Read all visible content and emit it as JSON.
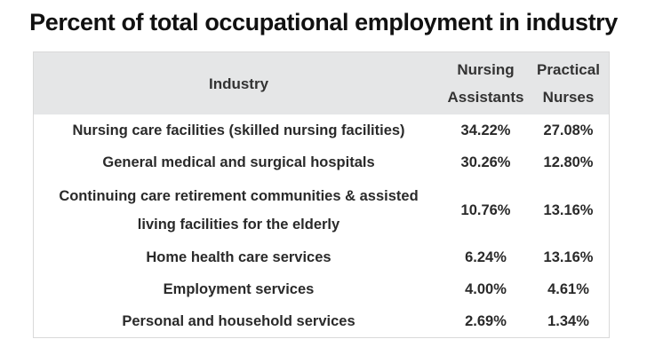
{
  "title": "Percent of total occupational employment in industry",
  "chart_data": {
    "type": "table",
    "title": "Percent of total occupational employment in industry",
    "columns": [
      "Industry",
      "Nursing Assistants",
      "Practical Nurses"
    ],
    "rows": [
      {
        "industry": "Nursing care facilities (skilled nursing facilities)",
        "nursing_assistants": "34.22%",
        "practical_nurses": "27.08%"
      },
      {
        "industry": "General medical and surgical hospitals",
        "nursing_assistants": "30.26%",
        "practical_nurses": "12.80%"
      },
      {
        "industry": "Continuing care retirement communities & assisted living facilities for the elderly",
        "nursing_assistants": "10.76%",
        "practical_nurses": "13.16%"
      },
      {
        "industry": "Home health care services",
        "nursing_assistants": "6.24%",
        "practical_nurses": "13.16%"
      },
      {
        "industry": "Employment services",
        "nursing_assistants": "4.00%",
        "practical_nurses": "4.61%"
      },
      {
        "industry": "Personal and household services",
        "nursing_assistants": "2.69%",
        "practical_nurses": "1.34%"
      }
    ]
  },
  "colors": {
    "header_background": "#e5e6e7",
    "border": "#d9d9d9",
    "text": "#2a2a2a"
  }
}
